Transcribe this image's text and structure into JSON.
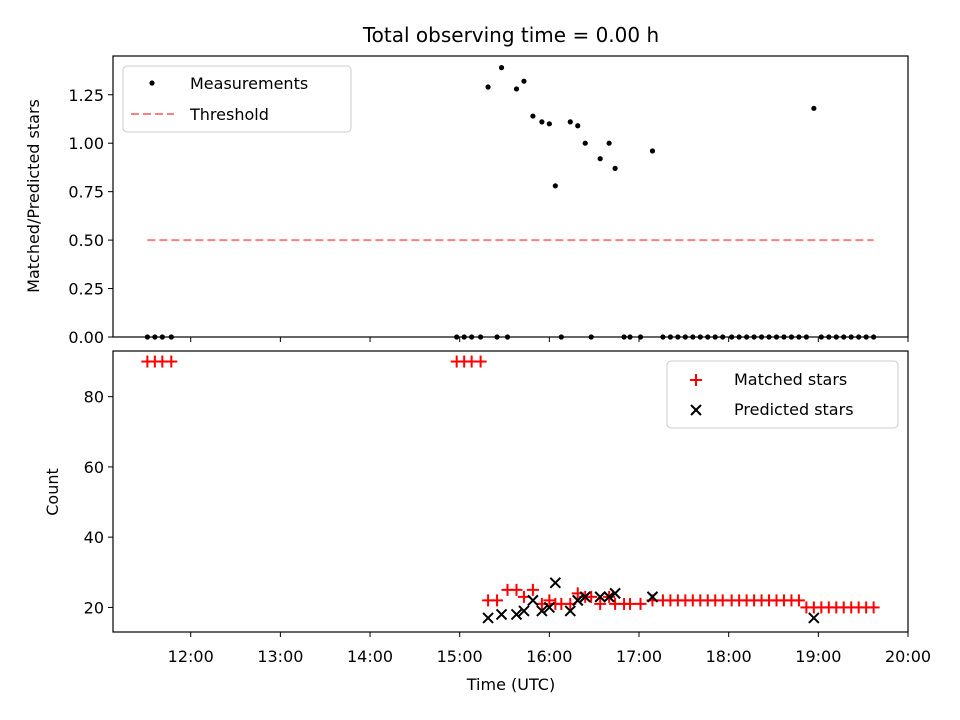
{
  "chart_data": [
    {
      "type": "scatter",
      "title": "Total observing time = 0.00 h",
      "xlabel": "",
      "ylabel": "Matched/Predicted stars",
      "xlim": [
        "11:08",
        "20:00"
      ],
      "ylim": [
        0,
        1.45
      ],
      "yticks": [
        0,
        0.25,
        0.5,
        0.75,
        1.0,
        1.25
      ],
      "ytick_labels": [
        "0.00",
        "0.25",
        "0.50",
        "0.75",
        "1.00",
        "1.25"
      ],
      "legend_position": "top-left",
      "grid": false,
      "series": [
        {
          "name": "Measurements",
          "style": "dots",
          "color": "#000000",
          "points": [
            [
              "11:31",
              0
            ],
            [
              "11:36",
              0
            ],
            [
              "11:41",
              0
            ],
            [
              "11:47",
              0
            ],
            [
              "14:58",
              0
            ],
            [
              "15:03",
              0
            ],
            [
              "15:08",
              0
            ],
            [
              "15:14",
              0
            ],
            [
              "15:19",
              1.29
            ],
            [
              "15:25",
              0
            ],
            [
              "15:28",
              1.39
            ],
            [
              "15:32",
              0
            ],
            [
              "15:38",
              1.28
            ],
            [
              "15:43",
              1.32
            ],
            [
              "15:49",
              1.14
            ],
            [
              "15:55",
              1.11
            ],
            [
              "16:00",
              1.1
            ],
            [
              "16:04",
              0.78
            ],
            [
              "16:08",
              0
            ],
            [
              "16:14",
              1.11
            ],
            [
              "16:19",
              1.09
            ],
            [
              "16:24",
              1.0
            ],
            [
              "16:28",
              0
            ],
            [
              "16:34",
              0.92
            ],
            [
              "16:40",
              1.0
            ],
            [
              "16:44",
              0.87
            ],
            [
              "16:50",
              0
            ],
            [
              "16:54",
              0
            ],
            [
              "17:01",
              0
            ],
            [
              "17:09",
              0.96
            ],
            [
              "17:16",
              0
            ],
            [
              "17:21",
              0
            ],
            [
              "17:26",
              0
            ],
            [
              "17:31",
              0
            ],
            [
              "17:36",
              0
            ],
            [
              "17:41",
              0
            ],
            [
              "17:46",
              0
            ],
            [
              "17:51",
              0
            ],
            [
              "17:56",
              0
            ],
            [
              "18:02",
              0
            ],
            [
              "18:07",
              0
            ],
            [
              "18:12",
              0
            ],
            [
              "18:17",
              0
            ],
            [
              "18:22",
              0
            ],
            [
              "18:27",
              0
            ],
            [
              "18:32",
              0
            ],
            [
              "18:37",
              0
            ],
            [
              "18:42",
              0
            ],
            [
              "18:47",
              0
            ],
            [
              "18:52",
              0
            ],
            [
              "18:57",
              1.18
            ],
            [
              "19:02",
              0
            ],
            [
              "19:07",
              0
            ],
            [
              "19:12",
              0
            ],
            [
              "19:17",
              0
            ],
            [
              "19:22",
              0
            ],
            [
              "19:27",
              0
            ],
            [
              "19:32",
              0
            ],
            [
              "19:37",
              0
            ]
          ]
        },
        {
          "name": "Threshold",
          "style": "dashed-line",
          "color": "#ff7f7f",
          "points": [
            [
              "11:31",
              0.5
            ],
            [
              "19:37",
              0.5
            ]
          ]
        }
      ]
    },
    {
      "type": "scatter",
      "title": "",
      "xlabel": "Time (UTC)",
      "ylabel": "Count",
      "xlim": [
        "11:08",
        "20:00"
      ],
      "xticks": [
        "12:00",
        "13:00",
        "14:00",
        "15:00",
        "16:00",
        "17:00",
        "18:00",
        "19:00",
        "20:00"
      ],
      "ylim": [
        13,
        93
      ],
      "yticks": [
        20,
        40,
        60,
        80
      ],
      "ytick_labels": [
        "20",
        "40",
        "60",
        "80"
      ],
      "legend_position": "top-right",
      "grid": false,
      "series": [
        {
          "name": "Matched stars",
          "marker": "plus",
          "color": "#ff0000",
          "points": [
            [
              "11:31",
              90
            ],
            [
              "11:36",
              90
            ],
            [
              "11:41",
              90
            ],
            [
              "11:47",
              90
            ],
            [
              "14:58",
              90
            ],
            [
              "15:03",
              90
            ],
            [
              "15:08",
              90
            ],
            [
              "15:14",
              90
            ],
            [
              "15:19",
              22
            ],
            [
              "15:25",
              22
            ],
            [
              "15:32",
              25
            ],
            [
              "15:38",
              25
            ],
            [
              "15:43",
              23
            ],
            [
              "15:49",
              25
            ],
            [
              "15:55",
              21
            ],
            [
              "16:00",
              22
            ],
            [
              "16:04",
              21
            ],
            [
              "16:08",
              21
            ],
            [
              "16:14",
              21
            ],
            [
              "16:19",
              24
            ],
            [
              "16:24",
              23
            ],
            [
              "16:28",
              23
            ],
            [
              "16:34",
              21
            ],
            [
              "16:40",
              23
            ],
            [
              "16:44",
              21
            ],
            [
              "16:50",
              21
            ],
            [
              "16:54",
              21
            ],
            [
              "17:01",
              21
            ],
            [
              "17:09",
              22
            ],
            [
              "17:16",
              22
            ],
            [
              "17:21",
              22
            ],
            [
              "17:26",
              22
            ],
            [
              "17:31",
              22
            ],
            [
              "17:36",
              22
            ],
            [
              "17:41",
              22
            ],
            [
              "17:46",
              22
            ],
            [
              "17:51",
              22
            ],
            [
              "17:56",
              22
            ],
            [
              "18:02",
              22
            ],
            [
              "18:07",
              22
            ],
            [
              "18:12",
              22
            ],
            [
              "18:17",
              22
            ],
            [
              "18:22",
              22
            ],
            [
              "18:27",
              22
            ],
            [
              "18:32",
              22
            ],
            [
              "18:37",
              22
            ],
            [
              "18:42",
              22
            ],
            [
              "18:47",
              22
            ],
            [
              "18:52",
              20
            ],
            [
              "18:57",
              20
            ],
            [
              "19:02",
              20
            ],
            [
              "19:07",
              20
            ],
            [
              "19:12",
              20
            ],
            [
              "19:17",
              20
            ],
            [
              "19:22",
              20
            ],
            [
              "19:27",
              20
            ],
            [
              "19:32",
              20
            ],
            [
              "19:37",
              20
            ]
          ]
        },
        {
          "name": "Predicted stars",
          "marker": "x",
          "color": "#000000",
          "points": [
            [
              "15:19",
              17
            ],
            [
              "15:28",
              18
            ],
            [
              "15:38",
              18
            ],
            [
              "15:43",
              19
            ],
            [
              "15:49",
              22
            ],
            [
              "15:55",
              19
            ],
            [
              "16:00",
              20
            ],
            [
              "16:04",
              27
            ],
            [
              "16:14",
              19
            ],
            [
              "16:19",
              22
            ],
            [
              "16:24",
              23
            ],
            [
              "16:34",
              23
            ],
            [
              "16:40",
              23
            ],
            [
              "16:44",
              24
            ],
            [
              "17:09",
              23
            ],
            [
              "18:57",
              17
            ]
          ]
        }
      ]
    }
  ]
}
